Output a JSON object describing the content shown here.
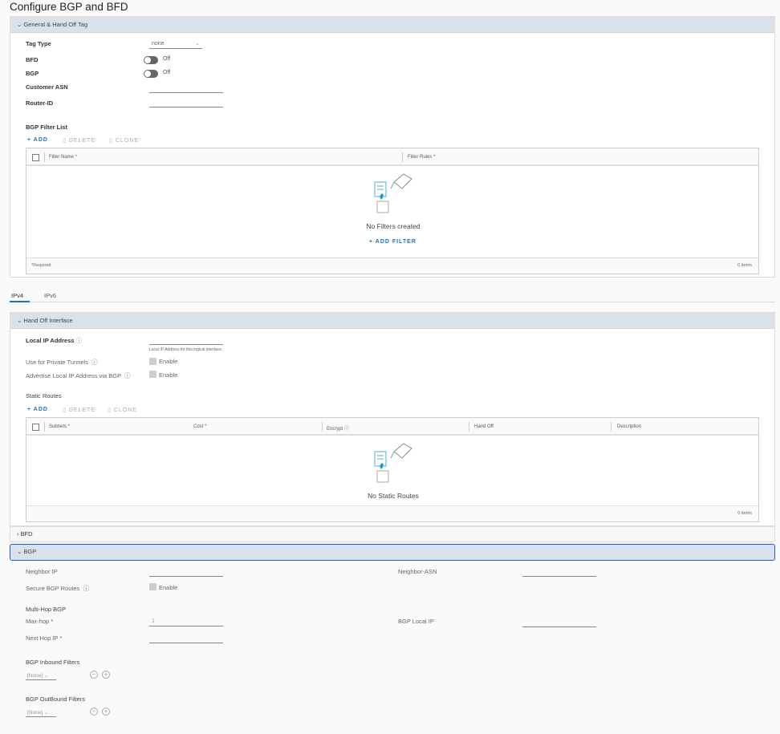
{
  "title": "Configure BGP and BFD",
  "general": {
    "header": "General & Hand Off Tag",
    "tag_type_label": "Tag Type",
    "tag_type_value": "none",
    "bfd_label": "BFD",
    "bfd_state": "Off",
    "bgp_label": "BGP",
    "bgp_state": "Off",
    "customer_asn_label": "Customer ASN",
    "router_id_label": "Router-ID",
    "filter_list": {
      "title": "BGP Filter List",
      "add": "ADD",
      "delete": "DELETE",
      "clone": "CLONE",
      "columns": [
        "Filter Name *",
        "Filter Rules *"
      ],
      "empty": "No Filters created",
      "add_filter": "ADD FILTER",
      "footer_left": "*Required",
      "footer_right": "0 items"
    }
  },
  "tabs": [
    {
      "label": "IPv4",
      "active": true
    },
    {
      "label": "IPv6",
      "active": false
    }
  ],
  "handoff": {
    "header": "Hand Off Interface",
    "local_ip_label": "Local IP Address",
    "local_ip_hint": "Local IP Address for this logical interface.",
    "private_tunnels_label": "Use for Private Tunnels",
    "advertise_label": "Advertise Local IP Address via BGP",
    "enable": "Enable",
    "static_routes": {
      "title": "Static Routes",
      "add": "ADD",
      "delete": "DELETE",
      "clone": "CLONE",
      "columns": [
        "Subnets *",
        "Cost *",
        "Encrypt",
        "Hand Off",
        "Description"
      ],
      "empty": "No Static Routes",
      "footer_right": "0 items"
    }
  },
  "bfd": {
    "header": "BFD"
  },
  "bgp": {
    "header": "BGP",
    "neighbor_ip_label": "Neighbor IP",
    "neighbor_asn_label": "Neighbor-ASN",
    "secure_label": "Secure BGP Routes",
    "enable": "Enable",
    "multihop_title": "Multi-Hop BGP",
    "max_hop_label": "Max-hop *",
    "max_hop_value": "1",
    "local_ip_label": "BGP Local IP",
    "next_hop_label": "Next Hop IP *",
    "inbound_label": "BGP Inbound Filters",
    "inbound_value": "[None]",
    "outbound_label": "BGP OutBound Filters",
    "outbound_value": "[None]"
  },
  "colors": {
    "accent": "#1a73b5",
    "header_bg": "#d9e2ea",
    "focus_border": "#1a5fd0"
  }
}
